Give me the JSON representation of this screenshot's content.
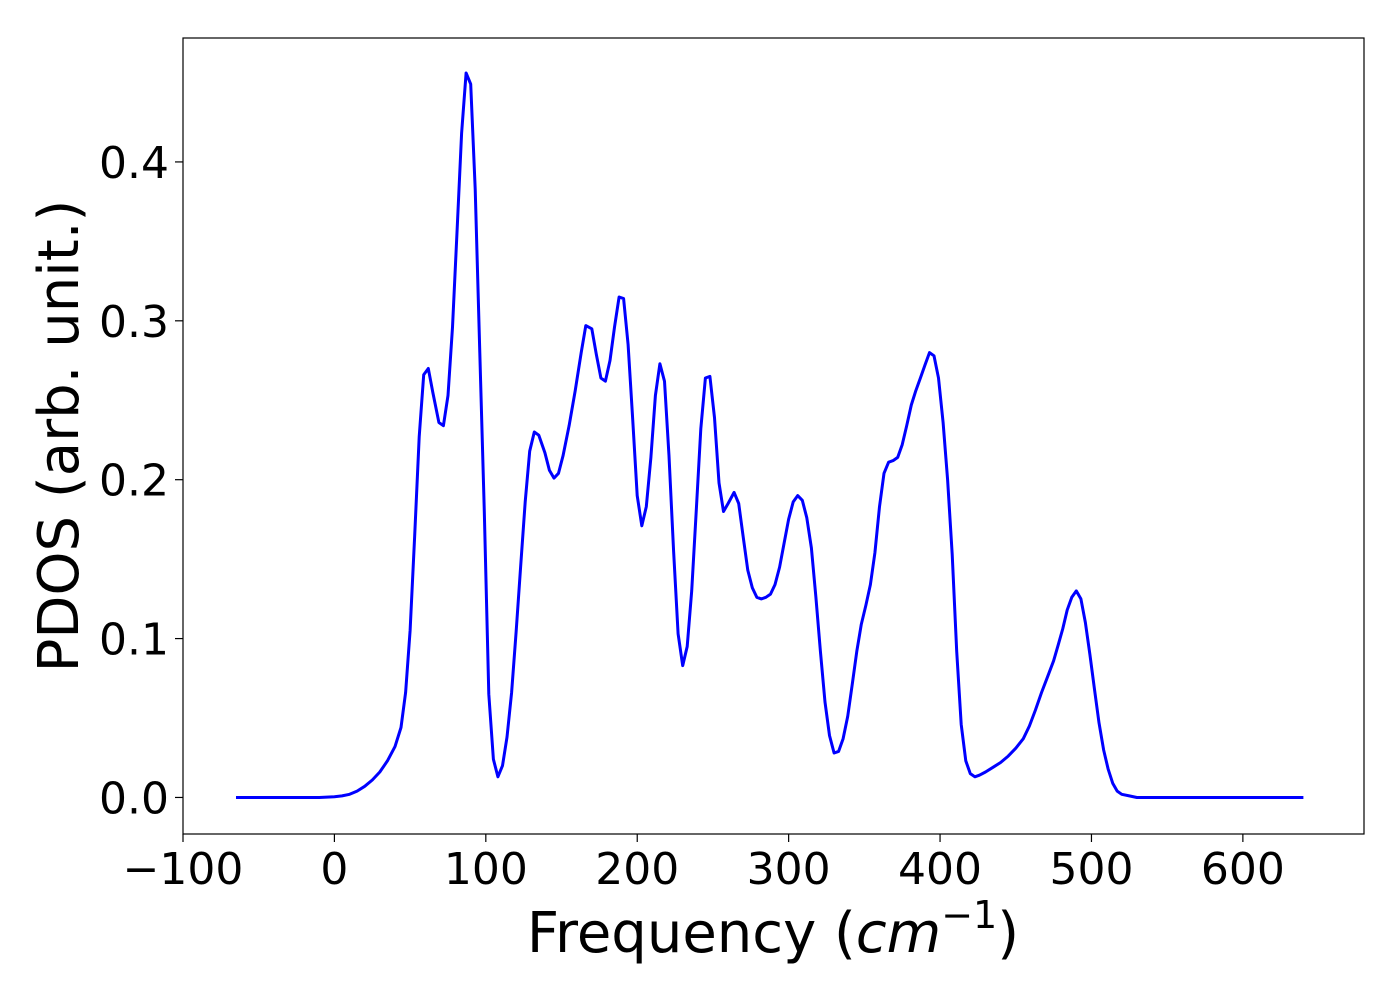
{
  "chart_data": {
    "type": "line",
    "title": "",
    "xlabel": "Frequency (",
    "xlabel_math": "cm",
    "xlabel_sup": "−1",
    "xlabel_close": ")",
    "ylabel": "PDOS (arb. unit.)",
    "xlim": [
      -100,
      680
    ],
    "ylim": [
      -0.023,
      0.478
    ],
    "x_ticks": [
      -100,
      0,
      100,
      200,
      300,
      400,
      500,
      600
    ],
    "x_tick_labels": [
      "−100",
      "0",
      "100",
      "200",
      "300",
      "400",
      "500",
      "600"
    ],
    "y_ticks": [
      0.0,
      0.1,
      0.2,
      0.3,
      0.4
    ],
    "y_tick_labels": [
      "0.0",
      "0.1",
      "0.2",
      "0.3",
      "0.4"
    ],
    "grid": false,
    "legend": "none",
    "series": [
      {
        "color": "#0000ff",
        "points": [
          [
            -65,
            0.0
          ],
          [
            -40,
            0.0
          ],
          [
            -20,
            0.0
          ],
          [
            -10,
            0.0
          ],
          [
            0,
            0.0005
          ],
          [
            5,
            0.001
          ],
          [
            10,
            0.002
          ],
          [
            15,
            0.004
          ],
          [
            20,
            0.007
          ],
          [
            25,
            0.011
          ],
          [
            30,
            0.016
          ],
          [
            35,
            0.023
          ],
          [
            40,
            0.032
          ],
          [
            44,
            0.044
          ],
          [
            47,
            0.066
          ],
          [
            50,
            0.105
          ],
          [
            53,
            0.165
          ],
          [
            56,
            0.227
          ],
          [
            59,
            0.266
          ],
          [
            62,
            0.27
          ],
          [
            65,
            0.255
          ],
          [
            69,
            0.236
          ],
          [
            72,
            0.234
          ],
          [
            75,
            0.253
          ],
          [
            78,
            0.296
          ],
          [
            81,
            0.357
          ],
          [
            84,
            0.418
          ],
          [
            87,
            0.456
          ],
          [
            90,
            0.449
          ],
          [
            93,
            0.383
          ],
          [
            96,
            0.28
          ],
          [
            99,
            0.18
          ],
          [
            102,
            0.065
          ],
          [
            105,
            0.024
          ],
          [
            108,
            0.013
          ],
          [
            111,
            0.02
          ],
          [
            114,
            0.038
          ],
          [
            117,
            0.066
          ],
          [
            120,
            0.104
          ],
          [
            123,
            0.145
          ],
          [
            126,
            0.186
          ],
          [
            129,
            0.218
          ],
          [
            132,
            0.23
          ],
          [
            135,
            0.228
          ],
          [
            139,
            0.217
          ],
          [
            142,
            0.206
          ],
          [
            145,
            0.201
          ],
          [
            148,
            0.204
          ],
          [
            151,
            0.215
          ],
          [
            155,
            0.234
          ],
          [
            159,
            0.256
          ],
          [
            163,
            0.28
          ],
          [
            166,
            0.297
          ],
          [
            170,
            0.295
          ],
          [
            173,
            0.279
          ],
          [
            176,
            0.264
          ],
          [
            179,
            0.262
          ],
          [
            182,
            0.275
          ],
          [
            185,
            0.296
          ],
          [
            188,
            0.315
          ],
          [
            191,
            0.314
          ],
          [
            194,
            0.285
          ],
          [
            197,
            0.238
          ],
          [
            200,
            0.19
          ],
          [
            203,
            0.171
          ],
          [
            206,
            0.183
          ],
          [
            209,
            0.214
          ],
          [
            212,
            0.253
          ],
          [
            215,
            0.273
          ],
          [
            218,
            0.262
          ],
          [
            221,
            0.215
          ],
          [
            224,
            0.155
          ],
          [
            227,
            0.103
          ],
          [
            230,
            0.083
          ],
          [
            233,
            0.095
          ],
          [
            236,
            0.13
          ],
          [
            239,
            0.181
          ],
          [
            242,
            0.232
          ],
          [
            245,
            0.264
          ],
          [
            248,
            0.265
          ],
          [
            251,
            0.239
          ],
          [
            254,
            0.198
          ],
          [
            257,
            0.18
          ],
          [
            260,
            0.185
          ],
          [
            264,
            0.192
          ],
          [
            267,
            0.185
          ],
          [
            270,
            0.164
          ],
          [
            273,
            0.143
          ],
          [
            276,
            0.132
          ],
          [
            279,
            0.126
          ],
          [
            282,
            0.125
          ],
          [
            285,
            0.126
          ],
          [
            288,
            0.128
          ],
          [
            291,
            0.134
          ],
          [
            294,
            0.145
          ],
          [
            297,
            0.16
          ],
          [
            300,
            0.175
          ],
          [
            303,
            0.186
          ],
          [
            306,
            0.19
          ],
          [
            309,
            0.187
          ],
          [
            312,
            0.176
          ],
          [
            315,
            0.157
          ],
          [
            318,
            0.126
          ],
          [
            321,
            0.092
          ],
          [
            324,
            0.06
          ],
          [
            327,
            0.039
          ],
          [
            330,
            0.028
          ],
          [
            333,
            0.029
          ],
          [
            336,
            0.037
          ],
          [
            339,
            0.051
          ],
          [
            342,
            0.071
          ],
          [
            345,
            0.092
          ],
          [
            348,
            0.109
          ],
          [
            351,
            0.121
          ],
          [
            354,
            0.134
          ],
          [
            357,
            0.154
          ],
          [
            360,
            0.183
          ],
          [
            363,
            0.204
          ],
          [
            366,
            0.211
          ],
          [
            369,
            0.212
          ],
          [
            372,
            0.214
          ],
          [
            375,
            0.222
          ],
          [
            378,
            0.234
          ],
          [
            381,
            0.247
          ],
          [
            384,
            0.256
          ],
          [
            387,
            0.264
          ],
          [
            390,
            0.272
          ],
          [
            393,
            0.28
          ],
          [
            396,
            0.278
          ],
          [
            399,
            0.264
          ],
          [
            402,
            0.236
          ],
          [
            405,
            0.2
          ],
          [
            408,
            0.153
          ],
          [
            411,
            0.092
          ],
          [
            414,
            0.046
          ],
          [
            417,
            0.023
          ],
          [
            420,
            0.015
          ],
          [
            423,
            0.013
          ],
          [
            426,
            0.014
          ],
          [
            430,
            0.016
          ],
          [
            435,
            0.019
          ],
          [
            440,
            0.022
          ],
          [
            445,
            0.026
          ],
          [
            450,
            0.031
          ],
          [
            455,
            0.037
          ],
          [
            459,
            0.045
          ],
          [
            463,
            0.055
          ],
          [
            467,
            0.066
          ],
          [
            471,
            0.076
          ],
          [
            475,
            0.086
          ],
          [
            478,
            0.096
          ],
          [
            481,
            0.106
          ],
          [
            484,
            0.118
          ],
          [
            487,
            0.126
          ],
          [
            490,
            0.13
          ],
          [
            493,
            0.125
          ],
          [
            496,
            0.11
          ],
          [
            499,
            0.09
          ],
          [
            502,
            0.068
          ],
          [
            505,
            0.047
          ],
          [
            508,
            0.03
          ],
          [
            511,
            0.018
          ],
          [
            514,
            0.009
          ],
          [
            517,
            0.004
          ],
          [
            520,
            0.002
          ],
          [
            525,
            0.001
          ],
          [
            530,
            0.0
          ],
          [
            550,
            0.0
          ],
          [
            570,
            0.0
          ],
          [
            590,
            0.0
          ],
          [
            600,
            0.0
          ],
          [
            620,
            0.0
          ],
          [
            640,
            0.0
          ]
        ]
      }
    ]
  }
}
